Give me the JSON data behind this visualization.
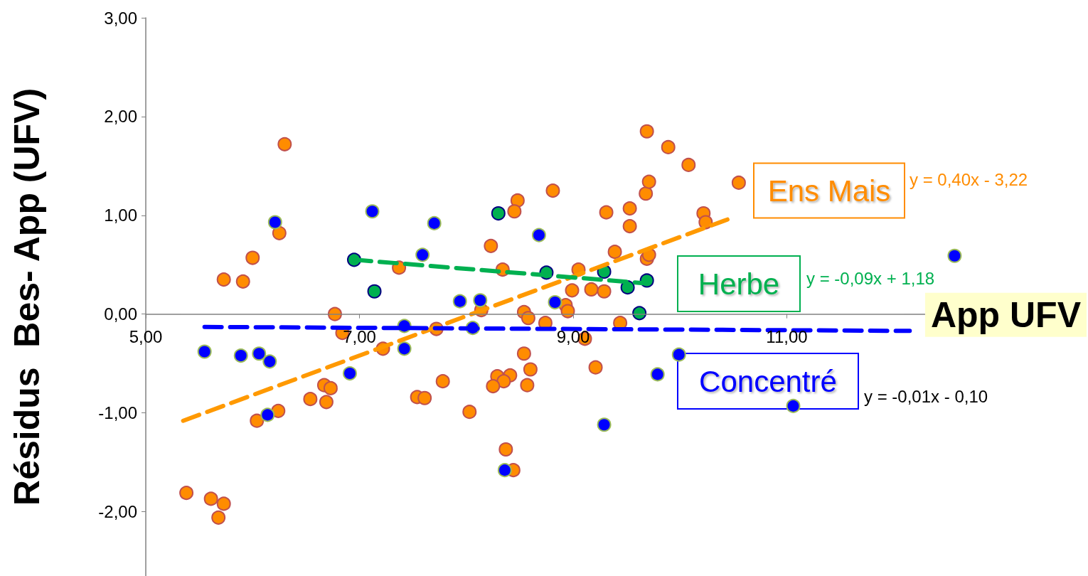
{
  "chart_data": {
    "type": "scatter",
    "xlabel": "App UFV",
    "ylabel": "Résidus  Bes- App (UFV)",
    "xlim": [
      5,
      12.8
    ],
    "xticks": [
      {
        "value": 5,
        "label": "5,00"
      },
      {
        "value": 7,
        "label": "7,00"
      },
      {
        "value": 9,
        "label": "9,00"
      },
      {
        "value": 11,
        "label": "11,00"
      }
    ],
    "ylim": [
      -2.65,
      3
    ],
    "yticks": [
      {
        "value": -2,
        "label": "-2,00"
      },
      {
        "value": -1,
        "label": "-1,00"
      },
      {
        "value": 0,
        "label": "0,00"
      },
      {
        "value": 1,
        "label": "1,00"
      },
      {
        "value": 2,
        "label": "2,00"
      },
      {
        "value": 3,
        "label": "3,00"
      }
    ],
    "marker": "circle",
    "series": [
      {
        "color": "#ff8c00",
        "x": [
          5.38,
          5.61,
          5.73,
          5.68,
          5.73,
          5.91,
          6.0,
          6.25,
          6.3,
          6.04,
          6.24,
          6.54,
          6.67,
          6.69,
          6.73,
          6.77,
          6.84,
          7.22,
          7.37,
          7.54,
          7.61,
          7.78,
          7.72,
          8.03,
          8.23,
          8.34,
          8.48,
          8.45,
          8.81,
          8.14,
          8.54,
          8.58,
          8.74,
          8.93,
          8.95,
          8.99,
          9.05,
          9.17,
          9.29,
          9.11,
          9.44,
          9.39,
          9.31,
          9.53,
          9.53,
          9.69,
          9.71,
          9.68,
          9.71,
          9.69,
          9.89,
          10.08,
          10.22,
          10.24,
          10.55,
          8.54,
          8.6,
          8.57,
          8.41,
          8.29,
          8.35,
          8.25,
          9.21,
          8.37,
          8.44
        ],
        "values": [
          -1.81,
          -1.87,
          -1.92,
          -2.06,
          0.35,
          0.33,
          0.57,
          0.82,
          1.72,
          -1.08,
          -0.98,
          -0.86,
          -0.72,
          -0.89,
          -0.75,
          0.0,
          -0.19,
          -0.35,
          0.47,
          -0.84,
          -0.85,
          -0.68,
          -0.15,
          -0.99,
          0.69,
          0.45,
          1.15,
          1.04,
          1.25,
          0.04,
          0.02,
          -0.04,
          -0.09,
          0.09,
          0.03,
          0.24,
          0.45,
          0.25,
          0.23,
          -0.25,
          -0.09,
          0.63,
          1.03,
          1.07,
          0.89,
          0.56,
          0.6,
          1.22,
          1.34,
          1.85,
          1.69,
          1.51,
          1.02,
          0.93,
          1.33,
          -0.4,
          -0.56,
          -0.72,
          -0.62,
          -0.63,
          -0.68,
          -0.73,
          -0.54,
          -1.37,
          -1.58
        ]
      },
      {
        "color": "#00b050",
        "x": [
          6.95,
          7.14,
          8.3,
          8.75,
          9.29,
          9.51,
          9.69,
          9.62
        ],
        "values": [
          0.55,
          0.23,
          1.02,
          0.42,
          0.43,
          0.27,
          0.34,
          0.01
        ]
      },
      {
        "color": "#0000ff",
        "x": [
          5.55,
          5.89,
          6.06,
          6.16,
          6.21,
          6.14,
          6.91,
          7.12,
          7.42,
          7.42,
          7.59,
          7.7,
          7.94,
          8.13,
          8.06,
          8.36,
          8.68,
          8.83,
          9.29,
          9.79,
          9.99,
          11.06,
          12.57
        ],
        "values": [
          -0.38,
          -0.42,
          -0.4,
          -0.48,
          0.93,
          -1.02,
          -0.6,
          1.04,
          -0.12,
          -0.35,
          0.6,
          0.92,
          0.13,
          0.14,
          -0.14,
          -1.58,
          0.8,
          0.12,
          -1.12,
          -0.61,
          -0.41,
          -0.93,
          0.59
        ]
      },
      {
        "type": "line",
        "color": "#ff9900",
        "line_style": "dashed",
        "marker": "none",
        "x": [
          5.35,
          10.5
        ],
        "values": [
          -1.08,
          0.98
        ]
      },
      {
        "type": "line",
        "color": "#00b050",
        "line_style": "dashed",
        "marker": "none",
        "x": [
          6.95,
          9.7
        ],
        "values": [
          0.55,
          0.31
        ]
      },
      {
        "type": "line",
        "color": "#0000ff",
        "line_style": "dashed",
        "marker": "none",
        "x": [
          5.55,
          12.15
        ],
        "values": [
          -0.13,
          -0.17
        ]
      }
    ],
    "annotations": [
      "Ens Mais",
      "Herbe",
      "Concentré",
      "y = 0,40x - 3,22",
      "y = -0,09x + 1,18",
      "y = -0,01x - 0,10"
    ]
  }
}
